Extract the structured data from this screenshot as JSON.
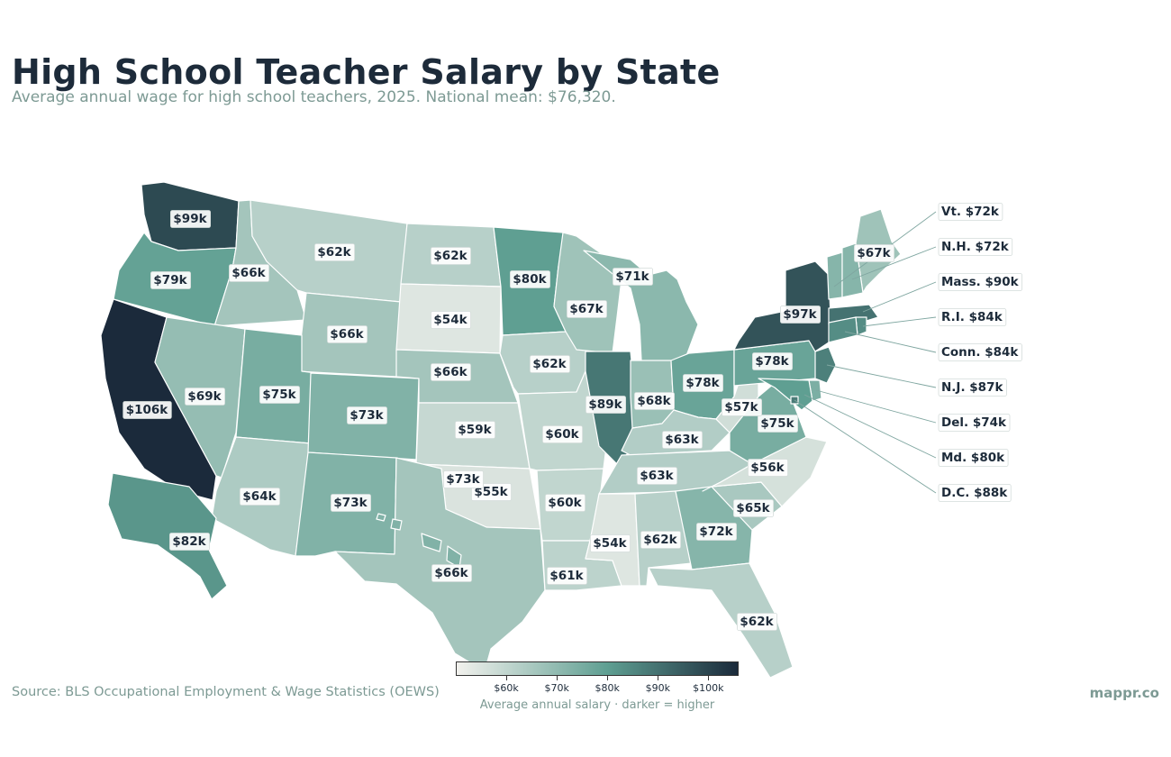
{
  "title": "High School Teacher Salary by State",
  "subtitle": "Average annual wage for high school teachers, 2025. National mean: $76,320.",
  "source": "Source: BLS Occupational Employment & Wage Statistics (OEWS)",
  "brand": "mappr.co",
  "legend": {
    "ticks": [
      "$60k",
      "$70k",
      "$80k",
      "$90k",
      "$100k"
    ],
    "caption": "Average annual salary  ·  darker = higher",
    "color_low": "#f2f1ed",
    "color_mid": "#5f9f92",
    "color_high": "#1b2a3b"
  },
  "states": [
    {
      "abbr": "WA",
      "label": "$99k",
      "value": 99
    },
    {
      "abbr": "OR",
      "label": "$79k",
      "value": 79
    },
    {
      "abbr": "CA",
      "label": "$106k",
      "value": 106
    },
    {
      "abbr": "ID",
      "label": "$66k",
      "value": 66
    },
    {
      "abbr": "NV",
      "label": "$69k",
      "value": 69
    },
    {
      "abbr": "MT",
      "label": "$62k",
      "value": 62
    },
    {
      "abbr": "WY",
      "label": "$66k",
      "value": 66
    },
    {
      "abbr": "UT",
      "label": "$75k",
      "value": 75
    },
    {
      "abbr": "AZ",
      "label": "$64k",
      "value": 64
    },
    {
      "abbr": "CO",
      "label": "$73k",
      "value": 73
    },
    {
      "abbr": "NM",
      "label": "$73k",
      "value": 73
    },
    {
      "abbr": "ND",
      "label": "$62k",
      "value": 62
    },
    {
      "abbr": "SD",
      "label": "$54k",
      "value": 54
    },
    {
      "abbr": "NE",
      "label": "$66k",
      "value": 66
    },
    {
      "abbr": "KS",
      "label": "$59k",
      "value": 59
    },
    {
      "abbr": "OK",
      "label": "$55k",
      "value": 55
    },
    {
      "abbr": "TX",
      "label": "$66k",
      "value": 66
    },
    {
      "abbr": "MN",
      "label": "$80k",
      "value": 80
    },
    {
      "abbr": "IA",
      "label": "$62k",
      "value": 62
    },
    {
      "abbr": "MO",
      "label": "$60k",
      "value": 60
    },
    {
      "abbr": "AR",
      "label": "$60k",
      "value": 60
    },
    {
      "abbr": "LA",
      "label": "$61k",
      "value": 61
    },
    {
      "abbr": "WI",
      "label": "$67k",
      "value": 67
    },
    {
      "abbr": "MI",
      "label": "$71k",
      "value": 71
    },
    {
      "abbr": "IL",
      "label": "$89k",
      "value": 89
    },
    {
      "abbr": "IN",
      "label": "$68k",
      "value": 68
    },
    {
      "abbr": "OH",
      "label": "$78k",
      "value": 78
    },
    {
      "abbr": "KY",
      "label": "$63k",
      "value": 63
    },
    {
      "abbr": "TN",
      "label": "$63k",
      "value": 63
    },
    {
      "abbr": "MS",
      "label": "$54k",
      "value": 54
    },
    {
      "abbr": "AL",
      "label": "$62k",
      "value": 62
    },
    {
      "abbr": "GA",
      "label": "$72k",
      "value": 72
    },
    {
      "abbr": "FL",
      "label": "$62k",
      "value": 62
    },
    {
      "abbr": "SC",
      "label": "$65k",
      "value": 65
    },
    {
      "abbr": "NC",
      "label": "$56k",
      "value": 56
    },
    {
      "abbr": "VA",
      "label": "$75k",
      "value": 75
    },
    {
      "abbr": "WV",
      "label": "$57k",
      "value": 57
    },
    {
      "abbr": "PA",
      "label": "$78k",
      "value": 78
    },
    {
      "abbr": "NY",
      "label": "$97k",
      "value": 97
    },
    {
      "abbr": "ME",
      "label": "$67k",
      "value": 67
    },
    {
      "abbr": "AK",
      "label": "$82k",
      "value": 82
    },
    {
      "abbr": "HI",
      "label": "$73k",
      "value": 73
    }
  ],
  "callouts": [
    {
      "abbr": "VT",
      "label": "Vt. $72k",
      "value": 72
    },
    {
      "abbr": "NH",
      "label": "N.H. $72k",
      "value": 72
    },
    {
      "abbr": "MA",
      "label": "Mass. $90k",
      "value": 90
    },
    {
      "abbr": "RI",
      "label": "R.I. $84k",
      "value": 84
    },
    {
      "abbr": "CT",
      "label": "Conn. $84k",
      "value": 84
    },
    {
      "abbr": "NJ",
      "label": "N.J. $87k",
      "value": 87
    },
    {
      "abbr": "DE",
      "label": "Del. $74k",
      "value": 74
    },
    {
      "abbr": "MD",
      "label": "Md. $80k",
      "value": 80
    },
    {
      "abbr": "DC",
      "label": "D.C. $88k",
      "value": 88
    }
  ]
}
